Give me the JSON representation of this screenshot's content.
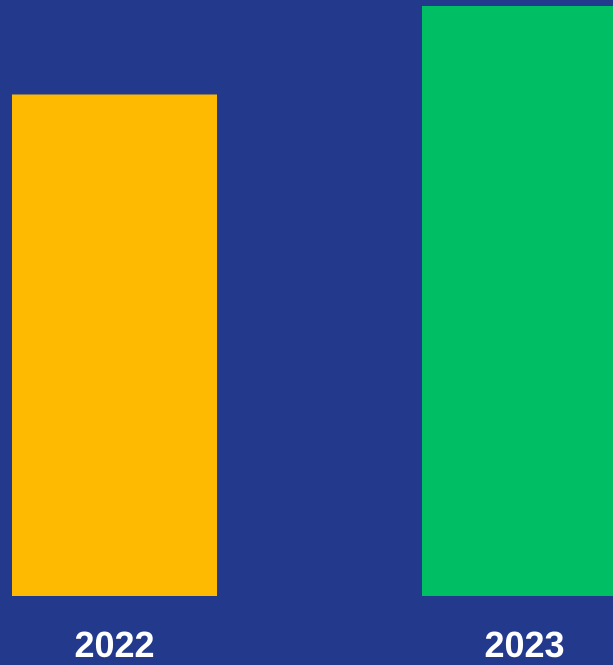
{
  "chart_data": {
    "type": "bar",
    "categories": [
      "2022",
      "2023"
    ],
    "values": [
      85,
      100
    ],
    "title": "",
    "xlabel": "",
    "ylabel": "",
    "ylim": [
      0,
      100
    ],
    "grid": false,
    "legend": "none"
  },
  "colors": {
    "background": "#233A8C",
    "bars": [
      "#FDBA00",
      "#00BE64"
    ],
    "label": "#FFFFFF"
  }
}
